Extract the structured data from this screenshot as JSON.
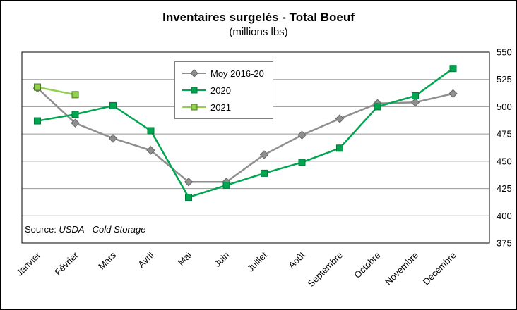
{
  "title": "Inventaires surgelés - Total Boeuf",
  "subtitle": "(millions lbs)",
  "source": {
    "prefix": "Source: ",
    "text": "USDA - Cold Storage"
  },
  "chart_data": {
    "type": "line",
    "title": "Inventaires surgelés - Total Boeuf",
    "subtitle": "(millions lbs)",
    "categories": [
      "Janvier",
      "Février",
      "Mars",
      "Avril",
      "Mai",
      "Juin",
      "Juillet",
      "Août",
      "Septembre",
      "Octobre",
      "Novembre",
      "Decembre"
    ],
    "series": [
      {
        "name": "Moy 2016-20",
        "color": "#8f8f8f",
        "edge": "#666666",
        "marker": "diamond",
        "values": [
          517,
          485,
          471,
          460,
          431,
          431,
          456,
          474,
          489,
          503,
          504,
          512
        ]
      },
      {
        "name": "2020",
        "color": "#00A550",
        "edge": "#00793a",
        "marker": "square",
        "values": [
          487,
          493,
          501,
          478,
          417,
          428,
          439,
          449,
          462,
          500,
          510,
          535
        ]
      },
      {
        "name": "2021",
        "color": "#92D050",
        "edge": "#4c7a1e",
        "marker": "square",
        "values": [
          518,
          511,
          null,
          null,
          null,
          null,
          null,
          null,
          null,
          null,
          null,
          null
        ]
      }
    ],
    "ylim": [
      375,
      550
    ],
    "ytick_step": 25,
    "ytick_labels": [
      375,
      400,
      425,
      450,
      475,
      500,
      525,
      550
    ],
    "grid": true,
    "legend_position": "top-center",
    "axis_side": "right"
  }
}
